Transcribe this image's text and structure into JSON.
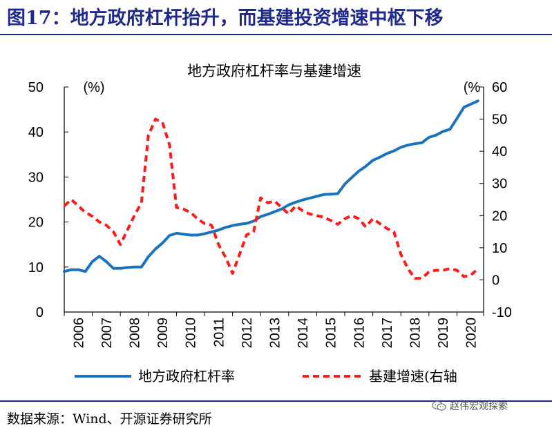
{
  "figure_title": "图17：地方政府杠杆抬升，而基建投资增速中枢下移",
  "source": "数据来源：Wind、开源证券研究所",
  "watermark": "赵伟宏观探索",
  "chart_data": {
    "type": "line",
    "title": "地方政府杠杆率与基建增速",
    "left_axis": {
      "ylim": [
        0,
        50
      ],
      "ticks": [
        0,
        10,
        20,
        30,
        40,
        50
      ],
      "unit": "(%)"
    },
    "right_axis": {
      "ylim": [
        -10,
        60
      ],
      "ticks": [
        -10,
        0,
        10,
        20,
        30,
        40,
        50,
        60
      ],
      "unit": "(%"
    },
    "xlim": [
      2006,
      2020.95
    ],
    "x_ticks": [
      "2006",
      "2007",
      "2008",
      "2009",
      "2010",
      "2011",
      "2012",
      "2013",
      "2014",
      "2015",
      "2016",
      "2017",
      "2018",
      "2019",
      "2020"
    ],
    "grid": false,
    "legend_position": "bottom",
    "series": [
      {
        "name": "地方政府杠杆率",
        "axis": "left",
        "color": "#1a73c0",
        "style": "solid",
        "points": [
          [
            2006.0,
            9.0
          ],
          [
            2006.25,
            9.4
          ],
          [
            2006.5,
            9.4
          ],
          [
            2006.75,
            9.0
          ],
          [
            2007.0,
            11.2
          ],
          [
            2007.25,
            12.4
          ],
          [
            2007.5,
            11.2
          ],
          [
            2007.75,
            9.7
          ],
          [
            2008.0,
            9.7
          ],
          [
            2008.25,
            9.9
          ],
          [
            2008.5,
            10.0
          ],
          [
            2008.75,
            10.0
          ],
          [
            2009.0,
            12.3
          ],
          [
            2009.25,
            14.0
          ],
          [
            2009.5,
            15.3
          ],
          [
            2009.75,
            17.0
          ],
          [
            2010.0,
            17.5
          ],
          [
            2010.25,
            17.3
          ],
          [
            2010.5,
            17.1
          ],
          [
            2010.75,
            17.1
          ],
          [
            2011.0,
            17.4
          ],
          [
            2011.25,
            17.8
          ],
          [
            2011.5,
            18.2
          ],
          [
            2011.75,
            18.8
          ],
          [
            2012.0,
            19.2
          ],
          [
            2012.25,
            19.5
          ],
          [
            2012.5,
            19.7
          ],
          [
            2012.75,
            20.2
          ],
          [
            2013.0,
            21.2
          ],
          [
            2013.25,
            21.7
          ],
          [
            2013.5,
            22.3
          ],
          [
            2013.75,
            22.9
          ],
          [
            2014.0,
            23.8
          ],
          [
            2014.25,
            24.4
          ],
          [
            2014.5,
            24.9
          ],
          [
            2014.75,
            25.3
          ],
          [
            2015.0,
            25.7
          ],
          [
            2015.25,
            26.1
          ],
          [
            2015.5,
            26.2
          ],
          [
            2015.75,
            26.3
          ],
          [
            2016.0,
            28.4
          ],
          [
            2016.25,
            29.9
          ],
          [
            2016.5,
            31.3
          ],
          [
            2016.75,
            32.4
          ],
          [
            2017.0,
            33.7
          ],
          [
            2017.25,
            34.4
          ],
          [
            2017.5,
            35.2
          ],
          [
            2017.75,
            35.8
          ],
          [
            2018.0,
            36.6
          ],
          [
            2018.25,
            37.1
          ],
          [
            2018.5,
            37.4
          ],
          [
            2018.75,
            37.6
          ],
          [
            2019.0,
            38.8
          ],
          [
            2019.25,
            39.3
          ],
          [
            2019.5,
            40.1
          ],
          [
            2019.75,
            40.6
          ],
          [
            2020.0,
            43.0
          ],
          [
            2020.25,
            45.5
          ],
          [
            2020.5,
            46.2
          ],
          [
            2020.75,
            46.9
          ]
        ]
      },
      {
        "name": "基建增速(右轴",
        "axis": "right",
        "color": "#ff1a1a",
        "style": "dashed",
        "points": [
          [
            2006.0,
            23.0
          ],
          [
            2006.25,
            25.0
          ],
          [
            2006.5,
            23.0
          ],
          [
            2006.75,
            21.0
          ],
          [
            2007.0,
            19.8
          ],
          [
            2007.25,
            18.0
          ],
          [
            2007.5,
            17.0
          ],
          [
            2007.75,
            15.0
          ],
          [
            2008.0,
            11.0
          ],
          [
            2008.25,
            15.5
          ],
          [
            2008.5,
            20.0
          ],
          [
            2008.75,
            24.0
          ],
          [
            2009.0,
            45.0
          ],
          [
            2009.25,
            50.0
          ],
          [
            2009.5,
            49.0
          ],
          [
            2009.75,
            42.0
          ],
          [
            2010.0,
            22.5
          ],
          [
            2010.25,
            22.0
          ],
          [
            2010.5,
            21.0
          ],
          [
            2010.75,
            19.0
          ],
          [
            2011.0,
            17.5
          ],
          [
            2011.25,
            17.0
          ],
          [
            2011.5,
            11.0
          ],
          [
            2011.75,
            7.0
          ],
          [
            2012.0,
            2.0
          ],
          [
            2012.25,
            8.0
          ],
          [
            2012.5,
            14.0
          ],
          [
            2012.75,
            15.0
          ],
          [
            2013.0,
            25.5
          ],
          [
            2013.25,
            24.0
          ],
          [
            2013.5,
            24.5
          ],
          [
            2013.75,
            22.5
          ],
          [
            2014.0,
            20.5
          ],
          [
            2014.25,
            23.0
          ],
          [
            2014.5,
            21.5
          ],
          [
            2014.75,
            20.5
          ],
          [
            2015.0,
            20.0
          ],
          [
            2015.25,
            19.5
          ],
          [
            2015.5,
            18.5
          ],
          [
            2015.75,
            17.3
          ],
          [
            2016.0,
            19.0
          ],
          [
            2016.25,
            20.0
          ],
          [
            2016.5,
            19.0
          ],
          [
            2016.75,
            16.5
          ],
          [
            2017.0,
            19.0
          ],
          [
            2017.25,
            17.5
          ],
          [
            2017.5,
            16.0
          ],
          [
            2017.75,
            15.0
          ],
          [
            2018.0,
            8.0
          ],
          [
            2018.25,
            3.5
          ],
          [
            2018.5,
            0.5
          ],
          [
            2018.75,
            0.5
          ],
          [
            2019.0,
            2.5
          ],
          [
            2019.25,
            3.0
          ],
          [
            2019.5,
            3.0
          ],
          [
            2019.75,
            3.5
          ],
          [
            2020.0,
            3.0
          ],
          [
            2020.25,
            1.0
          ],
          [
            2020.5,
            1.5
          ],
          [
            2020.75,
            3.5
          ]
        ]
      }
    ]
  }
}
